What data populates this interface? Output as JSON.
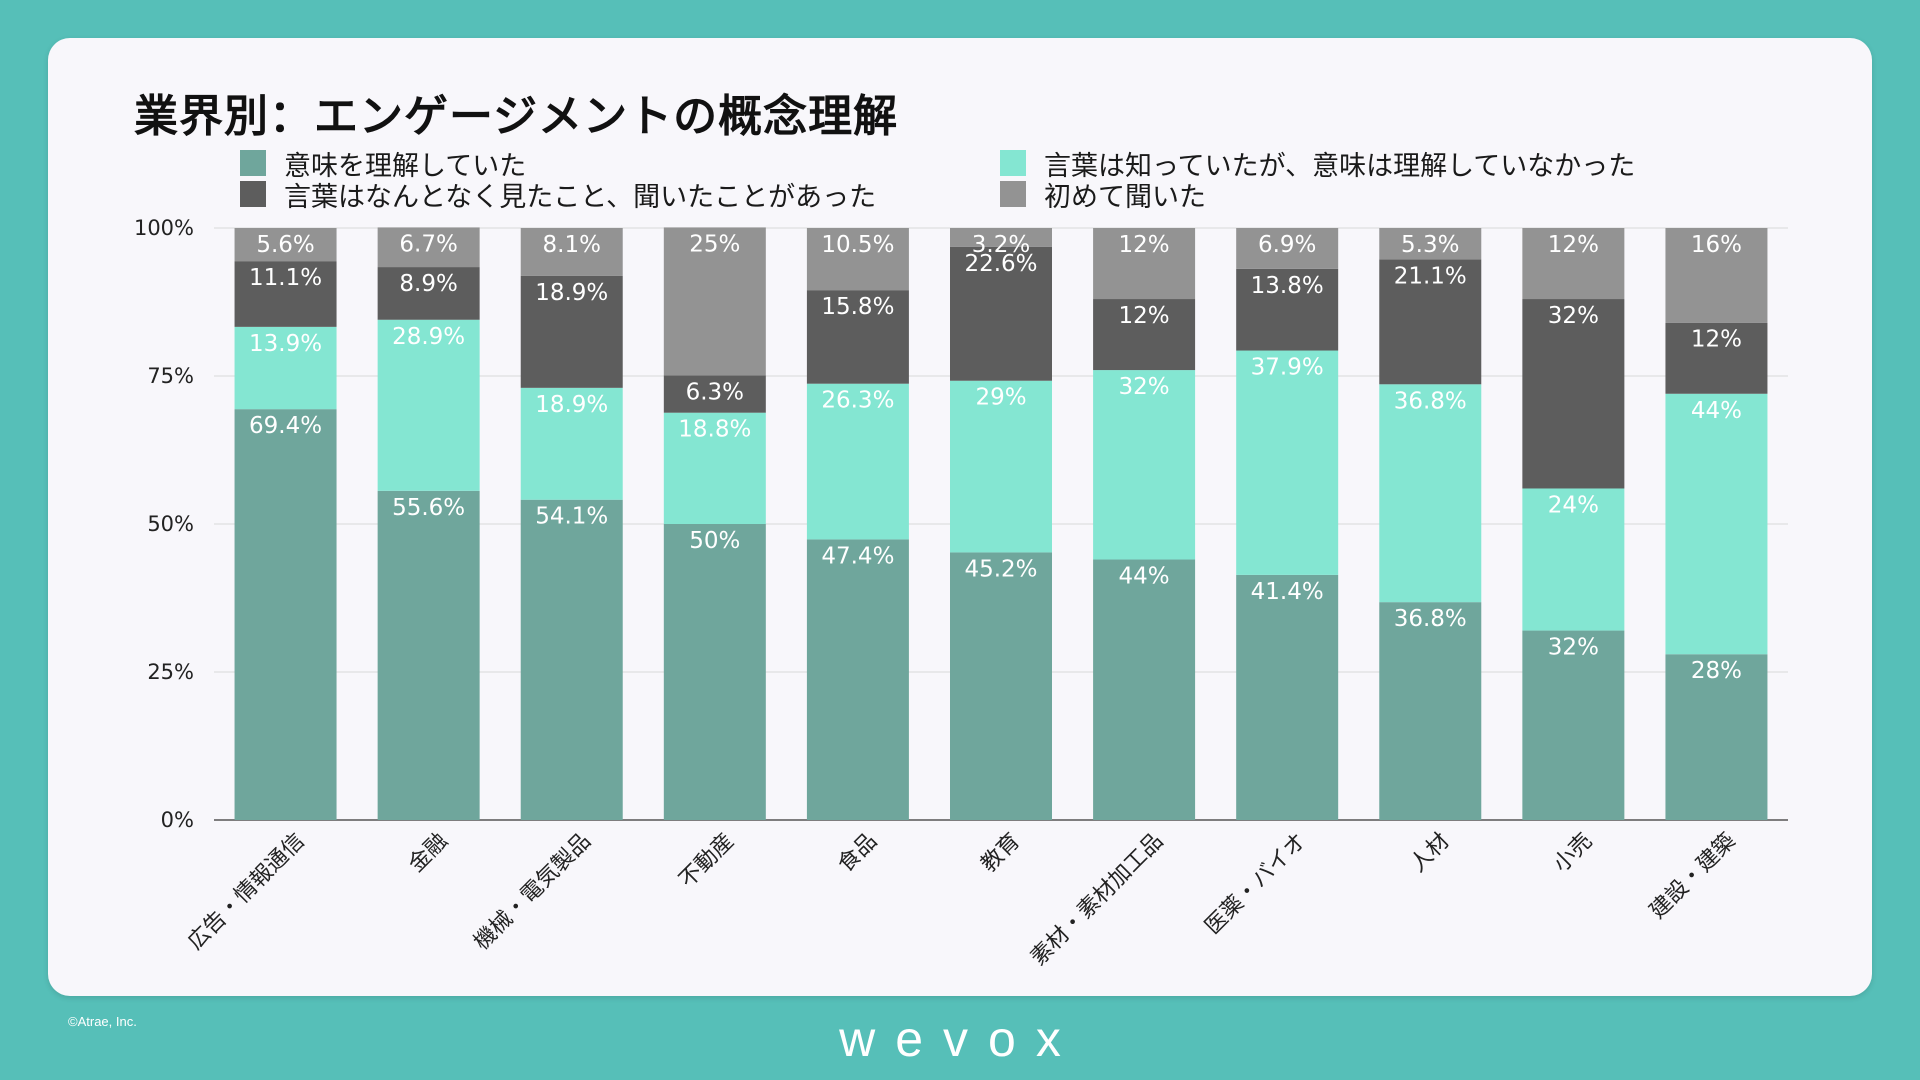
{
  "title": "業界別：エンゲージメントの概念理解",
  "footer": {
    "copyright": "©Atrae, Inc.",
    "brand": "wevox"
  },
  "colors": {
    "background": "#56bfb8",
    "card": "#f8f7fb",
    "understood": "#6fa69c",
    "known_not_understood": "#84e6d2",
    "seen": "#5d5d5d",
    "first_time": "#939393",
    "grid": "#d8d8d8",
    "axis": "#555555"
  },
  "chart_data": {
    "type": "bar",
    "stacked": true,
    "categories": [
      "広告・情報通信",
      "金融",
      "機械・電気製品",
      "不動産",
      "食品",
      "教育",
      "素材・素材加工品",
      "医薬・バイオ",
      "人材",
      "小売",
      "建設・建築"
    ],
    "series": [
      {
        "name": "意味を理解していた",
        "color": "#6fa69c",
        "values": [
          69.4,
          55.6,
          54.1,
          50,
          47.4,
          45.2,
          44,
          41.4,
          36.8,
          32,
          28
        ],
        "labels": [
          "69.4%",
          "55.6%",
          "54.1%",
          "50%",
          "47.4%",
          "45.2%",
          "44%",
          "41.4%",
          "36.8%",
          "32%",
          "28%"
        ]
      },
      {
        "name": "言葉は知っていたが、意味は理解していなかった",
        "color": "#84e6d2",
        "values": [
          13.9,
          28.9,
          18.9,
          18.8,
          26.3,
          29,
          32,
          37.9,
          36.8,
          24,
          44
        ],
        "labels": [
          "13.9%",
          "28.9%",
          "18.9%",
          "18.8%",
          "26.3%",
          "29%",
          "32%",
          "37.9%",
          "36.8%",
          "24%",
          "44%"
        ]
      },
      {
        "name": "言葉はなんとなく見たこと、聞いたことがあった",
        "color": "#5d5d5d",
        "values": [
          11.1,
          8.9,
          18.9,
          6.3,
          15.8,
          22.6,
          12,
          13.8,
          21.1,
          32,
          12
        ],
        "labels": [
          "11.1%",
          "8.9%",
          "18.9%",
          "6.3%",
          "15.8%",
          "22.6%",
          "12%",
          "13.8%",
          "21.1%",
          "32%",
          "12%"
        ]
      },
      {
        "name": "初めて聞いた",
        "color": "#939393",
        "values": [
          5.6,
          6.7,
          8.1,
          25,
          10.5,
          3.2,
          12,
          6.9,
          5.3,
          12,
          16
        ],
        "labels": [
          "5.6%",
          "6.7%",
          "8.1%",
          "25%",
          "10.5%",
          "3.2%",
          "12%",
          "6.9%",
          "5.3%",
          "12%",
          "16%"
        ]
      }
    ],
    "yticks": [
      "0%",
      "25%",
      "50%",
      "75%",
      "100%"
    ],
    "ytick_values": [
      0,
      25,
      50,
      75,
      100
    ],
    "ylim": [
      0,
      100
    ],
    "grid": true,
    "legend_position": "top"
  }
}
